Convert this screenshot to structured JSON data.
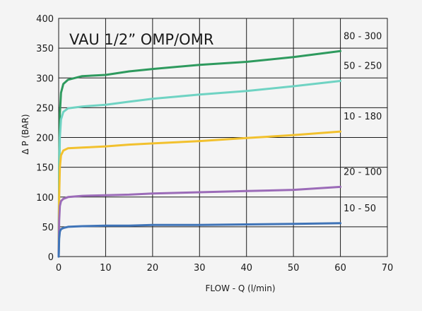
{
  "chart_data": {
    "type": "line",
    "title": "VAU 1/2” OMP/OMR",
    "xlabel": "FLOW - Q (l/min)",
    "ylabel": "Δ P (BAR)",
    "xlim": [
      0,
      70
    ],
    "ylim": [
      0,
      400
    ],
    "xticks": [
      0,
      10,
      20,
      30,
      40,
      50,
      60,
      70
    ],
    "yticks": [
      0,
      50,
      100,
      150,
      200,
      250,
      300,
      350,
      400
    ],
    "grid": true,
    "legend": "labels at right of curves",
    "background": "#f4f4f4",
    "series": [
      {
        "name": "80 - 300",
        "color": "#2e9a5e",
        "x": [
          0,
          0.1,
          0.25,
          0.5,
          1,
          2,
          5,
          10,
          15,
          20,
          30,
          40,
          50,
          60
        ],
        "y": [
          0,
          150,
          240,
          275,
          290,
          297,
          303,
          305,
          311,
          315,
          322,
          327,
          335,
          345
        ]
      },
      {
        "name": "50 - 250",
        "color": "#6fd3c3",
        "x": [
          0,
          0.1,
          0.25,
          0.5,
          1,
          2,
          5,
          10,
          15,
          20,
          30,
          40,
          50,
          60
        ],
        "y": [
          0,
          120,
          200,
          230,
          243,
          249,
          252,
          255,
          260,
          265,
          272,
          278,
          286,
          295
        ]
      },
      {
        "name": "10 - 180",
        "color": "#f2c12e",
        "x": [
          0,
          0.1,
          0.25,
          0.5,
          1,
          2,
          5,
          10,
          15,
          20,
          30,
          40,
          50,
          60
        ],
        "y": [
          0,
          100,
          150,
          170,
          178,
          182,
          183,
          185,
          188,
          190,
          194,
          199,
          204,
          210
        ]
      },
      {
        "name": "20 - 100",
        "color": "#9b6bb8",
        "x": [
          0,
          0.1,
          0.25,
          0.5,
          1,
          2,
          5,
          10,
          15,
          20,
          30,
          40,
          50,
          60
        ],
        "y": [
          0,
          60,
          85,
          93,
          97,
          100,
          102,
          103,
          104,
          106,
          108,
          110,
          112,
          117
        ]
      },
      {
        "name": "10 - 50",
        "color": "#3f74b8",
        "x": [
          0,
          0.1,
          0.25,
          0.5,
          1,
          2,
          5,
          10,
          15,
          20,
          30,
          40,
          50,
          60
        ],
        "y": [
          0,
          30,
          42,
          46,
          48,
          50,
          51,
          52,
          52,
          53,
          53,
          54,
          55,
          56
        ]
      }
    ]
  }
}
